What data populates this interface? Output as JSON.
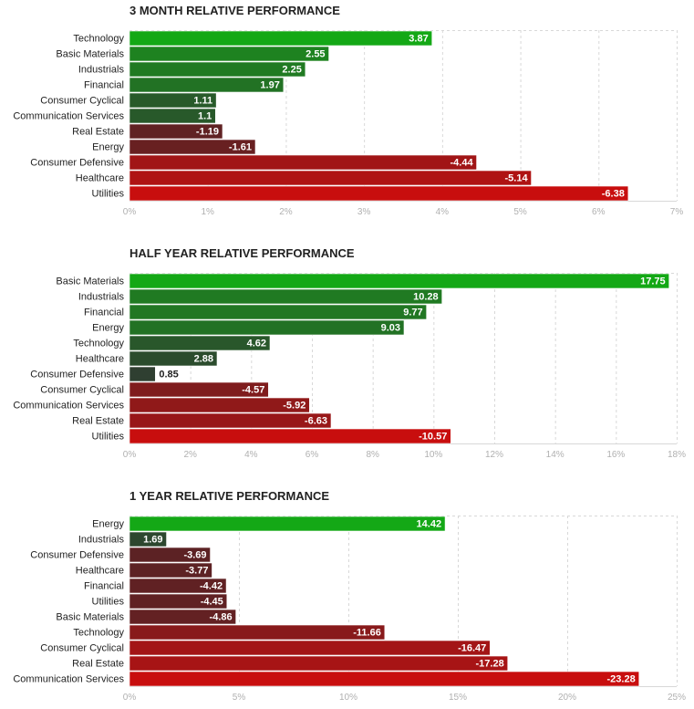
{
  "chart_data": [
    {
      "type": "bar",
      "orientation": "horizontal",
      "title": "3 MONTH RELATIVE PERFORMANCE",
      "categories": [
        "Technology",
        "Basic Materials",
        "Industrials",
        "Financial",
        "Consumer Cyclical",
        "Communication Services",
        "Real Estate",
        "Energy",
        "Consumer Defensive",
        "Healthcare",
        "Utilities"
      ],
      "values": [
        3.87,
        2.55,
        2.25,
        1.97,
        1.11,
        1.1,
        -1.19,
        -1.61,
        -4.44,
        -5.14,
        -6.38
      ],
      "value_labels": [
        "3.87",
        "2.55",
        "2.25",
        "1.97",
        "1.11",
        "1.1",
        "-1.19",
        "-1.61",
        "-4.44",
        "-5.14",
        "-6.38"
      ],
      "xlim": [
        0,
        7
      ],
      "xticks": [
        "0%",
        "1%",
        "2%",
        "3%",
        "4%",
        "5%",
        "6%",
        "7%"
      ],
      "xlabel": "",
      "ylabel": "",
      "grid": true
    },
    {
      "type": "bar",
      "orientation": "horizontal",
      "title": "HALF YEAR RELATIVE PERFORMANCE",
      "categories": [
        "Basic Materials",
        "Industrials",
        "Financial",
        "Energy",
        "Technology",
        "Healthcare",
        "Consumer Defensive",
        "Consumer Cyclical",
        "Communication Services",
        "Real Estate",
        "Utilities"
      ],
      "values": [
        17.75,
        10.28,
        9.77,
        9.03,
        4.62,
        2.88,
        0.85,
        -4.57,
        -5.92,
        -6.63,
        -10.57
      ],
      "value_labels": [
        "17.75",
        "10.28",
        "9.77",
        "9.03",
        "4.62",
        "2.88",
        "0.85",
        "-4.57",
        "-5.92",
        "-6.63",
        "-10.57"
      ],
      "xlim": [
        0,
        18
      ],
      "xticks": [
        "0%",
        "2%",
        "4%",
        "6%",
        "8%",
        "10%",
        "12%",
        "14%",
        "16%",
        "18%"
      ],
      "xlabel": "",
      "ylabel": "",
      "grid": true
    },
    {
      "type": "bar",
      "orientation": "horizontal",
      "title": "1 YEAR RELATIVE PERFORMANCE",
      "categories": [
        "Energy",
        "Industrials",
        "Consumer Defensive",
        "Healthcare",
        "Financial",
        "Utilities",
        "Basic Materials",
        "Technology",
        "Consumer Cyclical",
        "Real Estate",
        "Communication Services"
      ],
      "values": [
        14.42,
        1.69,
        -3.69,
        -3.77,
        -4.42,
        -4.45,
        -4.86,
        -11.66,
        -16.47,
        -17.28,
        -23.28
      ],
      "value_labels": [
        "14.42",
        "1.69",
        "-3.69",
        "-3.77",
        "-4.42",
        "-4.45",
        "-4.86",
        "-11.66",
        "-16.47",
        "-17.28",
        "-23.28"
      ],
      "xlim": [
        0,
        25
      ],
      "xticks": [
        "0%",
        "5%",
        "10%",
        "15%",
        "20%",
        "25%"
      ],
      "xlabel": "",
      "ylabel": "",
      "grid": true
    }
  ],
  "colors": {
    "grid": "#d8d8d8",
    "tick_text": "#b0b0b0",
    "category_text": "#222222",
    "title_text": "#222222",
    "bar_border": "#ffffff"
  }
}
